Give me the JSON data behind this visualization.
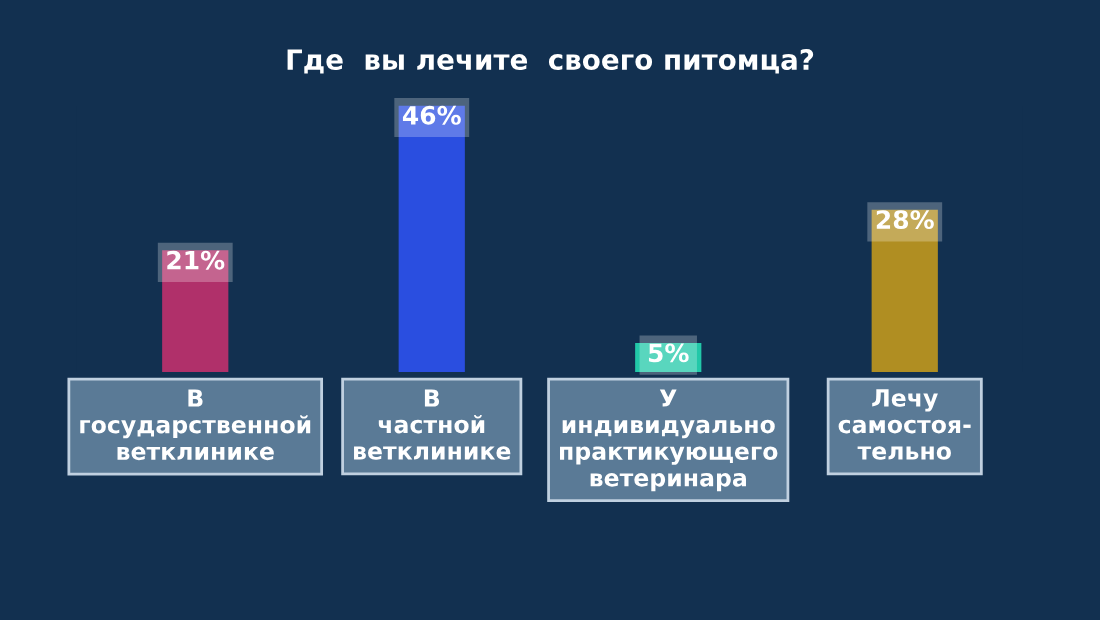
{
  "chart_data": {
    "type": "bar",
    "title": "Где  вы лечите  своего питомца?",
    "categories": [
      "В\nгосударственной\nветклинике",
      "В\nчастной\nветклинике",
      "У\nиндивидуально\nпрактикующего\nветеринара",
      "Лечу\nсамостоя-\nтельно"
    ],
    "values": [
      21,
      46,
      5,
      28
    ],
    "colors": [
      "#b0306a",
      "#2a4ee0",
      "#22c8a8",
      "#b08e22"
    ],
    "value_labels": [
      "21%",
      "46%",
      "5%",
      "28%"
    ],
    "grid": false,
    "legend": false
  }
}
